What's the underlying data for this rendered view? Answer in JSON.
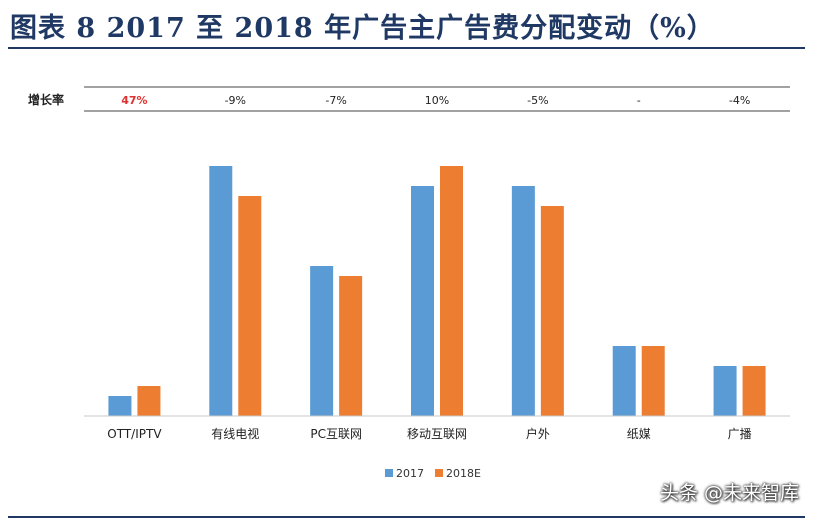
{
  "title": "图表 8   2017 至 2018 年广告主广告费分配变动（%）",
  "watermark": "头条 @未来智库",
  "chart_data": {
    "type": "bar",
    "categories": [
      "OTT/IPTV",
      "有线电视",
      "PC互联网",
      "移动互联网",
      "户外",
      "纸媒",
      "广播"
    ],
    "series": [
      {
        "name": "2017",
        "values": [
          2.0,
          25.0,
          15.0,
          23.0,
          23.0,
          7.0,
          5.0
        ]
      },
      {
        "name": "2018E",
        "values": [
          3.0,
          22.0,
          14.0,
          25.0,
          21.0,
          7.0,
          5.0
        ]
      }
    ],
    "ylim": [
      0,
      27
    ],
    "growth_label": "增长率",
    "growth": [
      "47%",
      "-9%",
      "-7%",
      "10%",
      "-5%",
      "-",
      "-4%"
    ],
    "highlight_color": "#e03030",
    "colors": {
      "2017": "#5b9bd5",
      "2018E": "#ed7d31"
    },
    "legend_position": "bottom-center",
    "grid": false
  }
}
